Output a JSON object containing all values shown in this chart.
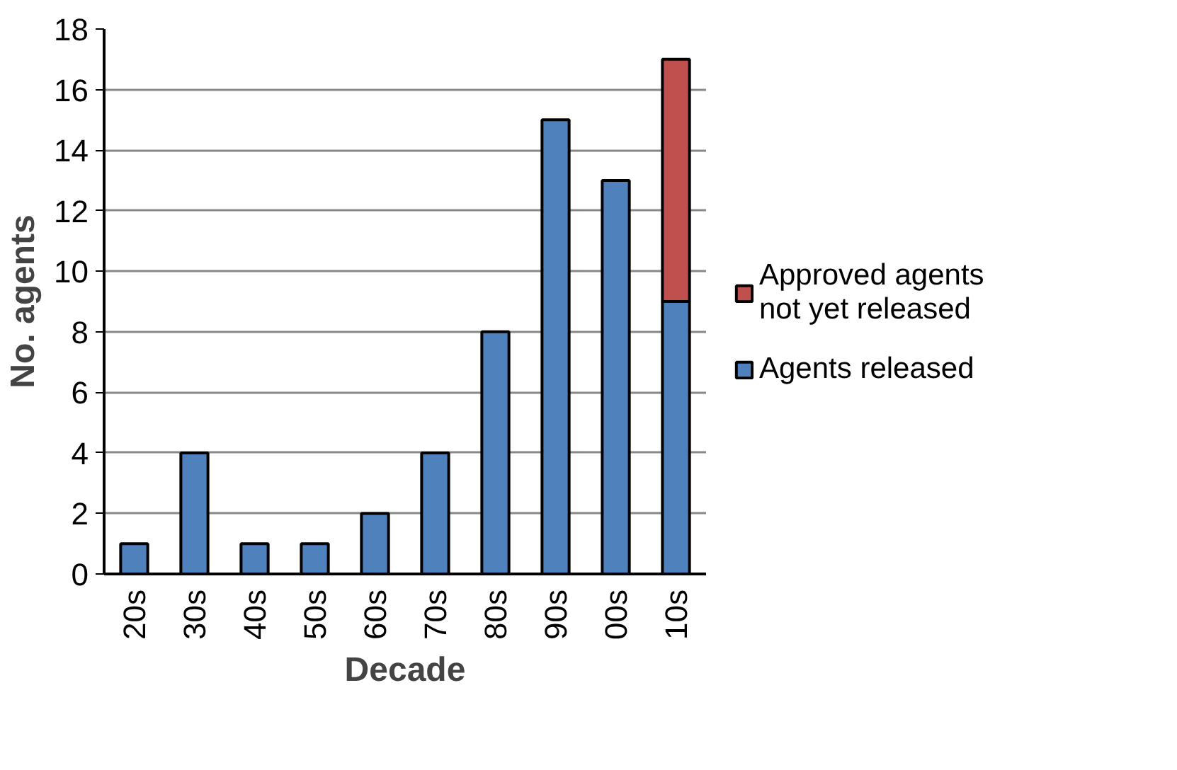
{
  "chart_data": {
    "type": "bar",
    "xlabel": "Decade",
    "ylabel": "No. agents",
    "categories": [
      "20s",
      "30s",
      "40s",
      "50s",
      "60s",
      "70s",
      "80s",
      "90s",
      "00s",
      "10s"
    ],
    "stacked": true,
    "series": [
      {
        "name": "Agents released",
        "color": "#4f81bd",
        "values": [
          1,
          4,
          1,
          1,
          2,
          4,
          8,
          15,
          13,
          9
        ]
      },
      {
        "name": "Approved agents not yet released",
        "color": "#c0504d",
        "values": [
          null,
          null,
          null,
          null,
          null,
          null,
          null,
          null,
          null,
          8
        ]
      }
    ],
    "ylim": [
      0,
      18
    ],
    "yticks": [
      0,
      2,
      4,
      6,
      8,
      10,
      12,
      14,
      16,
      18
    ],
    "grid": "y",
    "legend": "right"
  }
}
